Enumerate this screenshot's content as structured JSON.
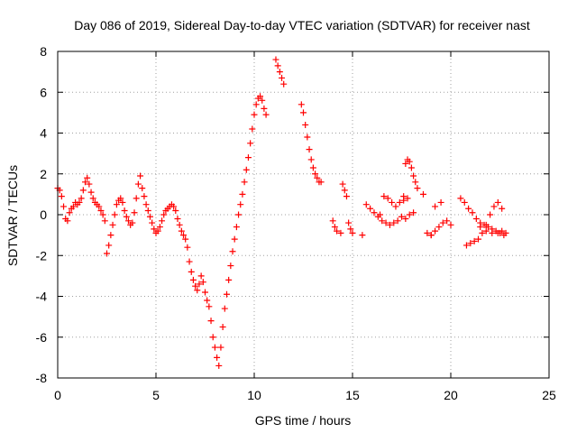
{
  "chart_data": {
    "type": "scatter",
    "title": "Day 086 of 2019, Sidereal Day-to-day VTEC variation (SDTVAR) for receiver nast",
    "xlabel": "GPS time / hours",
    "ylabel": "SDTVAR / TECUs",
    "xlim": [
      0,
      25
    ],
    "ylim": [
      -8,
      8
    ],
    "xticks": [
      "0",
      "5",
      "10",
      "15",
      "20",
      "25"
    ],
    "xtick_values": [
      0,
      5,
      10,
      15,
      20,
      25
    ],
    "yticks": [
      "-8",
      "-6",
      "-4",
      "-2",
      "0",
      "2",
      "4",
      "6",
      "8"
    ],
    "ytick_values": [
      -8,
      -6,
      -4,
      -2,
      0,
      2,
      4,
      6,
      8
    ],
    "grid": true,
    "marker": "+",
    "color": "#ff0000",
    "series": [
      {
        "name": "SDTVAR",
        "x": [
          0.0,
          0.1,
          0.2,
          0.3,
          0.4,
          0.5,
          0.6,
          0.7,
          0.8,
          0.9,
          1.0,
          1.1,
          1.2,
          1.3,
          1.4,
          1.5,
          1.6,
          1.7,
          1.8,
          1.9,
          2.0,
          2.1,
          2.2,
          2.3,
          2.4,
          2.5,
          2.6,
          2.7,
          2.8,
          2.9,
          3.0,
          3.1,
          3.2,
          3.3,
          3.4,
          3.5,
          3.6,
          3.7,
          3.8,
          3.9,
          4.0,
          4.1,
          4.2,
          4.3,
          4.4,
          4.5,
          4.6,
          4.7,
          4.8,
          4.9,
          5.0,
          5.1,
          5.2,
          5.3,
          5.4,
          5.5,
          5.6,
          5.7,
          5.8,
          5.9,
          6.0,
          6.1,
          6.2,
          6.3,
          6.4,
          6.5,
          6.6,
          6.7,
          6.8,
          6.9,
          7.0,
          7.1,
          7.2,
          7.3,
          7.4,
          7.5,
          7.6,
          7.7,
          7.8,
          7.9,
          8.0,
          8.1,
          8.2,
          8.3,
          8.4,
          8.5,
          8.6,
          8.7,
          8.8,
          8.9,
          9.0,
          9.1,
          9.2,
          9.3,
          9.4,
          9.5,
          9.6,
          9.7,
          9.8,
          9.9,
          10.0,
          10.1,
          10.2,
          10.3,
          10.4,
          10.5,
          10.6,
          11.1,
          11.2,
          11.3,
          11.4,
          11.5,
          12.4,
          12.5,
          12.6,
          12.7,
          12.8,
          12.9,
          13.0,
          13.1,
          13.2,
          13.3,
          13.4,
          14.0,
          14.1,
          14.2,
          14.4,
          14.5,
          14.6,
          14.7,
          14.8,
          14.9,
          15.0,
          15.5,
          15.7,
          15.9,
          16.1,
          16.3,
          16.5,
          16.7,
          16.9,
          17.1,
          17.3,
          17.5,
          17.7,
          17.9,
          18.1,
          16.4,
          16.6,
          16.8,
          17.0,
          17.2,
          17.4,
          17.6,
          17.8,
          17.6,
          17.7,
          17.8,
          17.9,
          18.0,
          18.1,
          18.2,
          18.3,
          18.6,
          18.8,
          19.0,
          19.2,
          19.4,
          19.6,
          19.8,
          20.0,
          19.0,
          19.2,
          19.5,
          20.5,
          20.7,
          20.9,
          21.1,
          21.3,
          21.5,
          21.7,
          21.9,
          22.1,
          22.3,
          22.5,
          22.7,
          20.8,
          21.0,
          21.2,
          21.4,
          21.6,
          21.8,
          22.0,
          22.2,
          22.4,
          22.6,
          21.5,
          21.8,
          22.1,
          22.4,
          22.6,
          22.8
        ],
        "y": [
          1.3,
          1.2,
          0.9,
          0.4,
          -0.2,
          -0.3,
          0.1,
          0.3,
          0.4,
          0.6,
          0.5,
          0.6,
          0.8,
          1.2,
          1.6,
          1.8,
          1.5,
          1.1,
          0.8,
          0.6,
          0.5,
          0.4,
          0.2,
          0.0,
          -0.3,
          -1.9,
          -1.5,
          -1.0,
          -0.5,
          0.0,
          0.5,
          0.7,
          0.8,
          0.6,
          0.2,
          -0.1,
          -0.3,
          -0.5,
          -0.4,
          0.1,
          0.8,
          1.5,
          1.9,
          1.3,
          0.9,
          0.5,
          0.2,
          -0.1,
          -0.4,
          -0.7,
          -0.9,
          -0.8,
          -0.6,
          -0.3,
          0.0,
          0.2,
          0.3,
          0.4,
          0.5,
          0.4,
          0.2,
          -0.2,
          -0.5,
          -0.8,
          -1.0,
          -1.2,
          -1.6,
          -2.3,
          -2.8,
          -3.2,
          -3.5,
          -3.7,
          -3.4,
          -3.0,
          -3.3,
          -3.8,
          -4.2,
          -4.5,
          -5.2,
          -6.0,
          -6.5,
          -7.0,
          -7.4,
          -6.5,
          -5.5,
          -4.6,
          -3.9,
          -3.2,
          -2.5,
          -1.8,
          -1.2,
          -0.6,
          0.0,
          0.5,
          1.0,
          1.6,
          2.2,
          2.8,
          3.5,
          4.2,
          4.9,
          5.4,
          5.7,
          5.8,
          5.6,
          5.2,
          4.9,
          7.6,
          7.3,
          7.0,
          6.7,
          6.4,
          5.4,
          5.0,
          4.4,
          3.8,
          3.2,
          2.7,
          2.3,
          2.0,
          1.8,
          1.6,
          1.6,
          -0.3,
          -0.6,
          -0.8,
          -0.9,
          1.5,
          1.2,
          0.9,
          -0.4,
          -0.7,
          -0.9,
          -1.0,
          0.5,
          0.3,
          0.1,
          -0.1,
          -0.3,
          -0.4,
          -0.5,
          -0.4,
          -0.3,
          -0.1,
          -0.2,
          0.0,
          0.1,
          0.0,
          0.9,
          0.8,
          0.6,
          0.4,
          0.6,
          0.7,
          0.8,
          0.9,
          2.5,
          2.7,
          2.6,
          2.3,
          1.9,
          1.6,
          1.3,
          1.0,
          -0.9,
          -1.0,
          -0.8,
          -0.6,
          -0.4,
          -0.3,
          -0.5,
          -1.0,
          0.4,
          0.6,
          0.8,
          0.6,
          0.3,
          0.1,
          -0.2,
          -0.4,
          -0.5,
          -0.6,
          -0.7,
          -0.8,
          -0.9,
          -1.0,
          -1.5,
          -1.4,
          -1.3,
          -1.2,
          -0.9,
          -0.5,
          0.0,
          0.4,
          0.6,
          0.3,
          -0.6,
          -0.8,
          -0.9,
          -0.9,
          -0.8,
          -0.9
        ]
      }
    ]
  }
}
